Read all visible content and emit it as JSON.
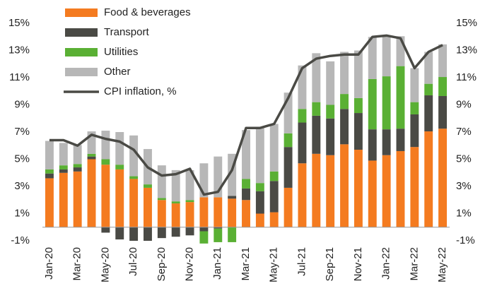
{
  "chart_data": {
    "type": "stacked-bar-line",
    "categories": [
      "Jan-20",
      null,
      "Mar-20",
      null,
      "May-20",
      null,
      "Jul-20",
      null,
      "Sep-20",
      null,
      "Nov-20",
      null,
      "Jan-21",
      null,
      "Mar-21",
      null,
      "May-21",
      null,
      "Jul-21",
      null,
      "Sep-21",
      null,
      "Nov-21",
      null,
      "Jan-22",
      null,
      "Mar-22",
      null,
      "May-22"
    ],
    "series": [
      {
        "name": "Food & beverages",
        "color": "#f47b20",
        "values": [
          3.6,
          4.0,
          4.1,
          5.0,
          4.6,
          4.25,
          3.55,
          2.9,
          2.0,
          1.75,
          1.85,
          2.2,
          2.2,
          2.1,
          2.0,
          1.0,
          1.1,
          2.9,
          4.7,
          5.4,
          5.3,
          6.1,
          5.7,
          4.9,
          5.3,
          5.6,
          5.9,
          7.05,
          7.25
        ]
      },
      {
        "name": "Transport",
        "color": "#4a4a45",
        "values": [
          0.35,
          0.25,
          0.3,
          0.2,
          -0.4,
          -0.9,
          -1.0,
          -1.0,
          -0.8,
          -0.7,
          -0.6,
          -0.3,
          -0.1,
          0.2,
          0.85,
          1.65,
          2.3,
          3.0,
          3.0,
          2.8,
          2.7,
          2.6,
          2.7,
          2.3,
          1.9,
          1.65,
          2.4,
          2.65,
          2.4
        ]
      },
      {
        "name": "Utilities",
        "color": "#5ab034",
        "values": [
          0.3,
          0.3,
          0.25,
          0.2,
          0.4,
          0.35,
          0.2,
          0.25,
          0.15,
          0.15,
          0.15,
          -0.9,
          -1.0,
          -1.1,
          0.7,
          0.6,
          0.7,
          1.0,
          1.0,
          1.0,
          1.0,
          1.1,
          1.1,
          3.7,
          3.9,
          4.6,
          0.9,
          0.85,
          1.4
        ]
      },
      {
        "name": "Other",
        "color": "#b7b7b7",
        "values": [
          2.1,
          1.65,
          1.4,
          1.65,
          2.1,
          2.4,
          3.0,
          2.6,
          2.4,
          2.3,
          2.2,
          2.5,
          3.0,
          3.1,
          3.6,
          4.1,
          3.5,
          3.0,
          3.2,
          3.6,
          3.2,
          3.1,
          3.5,
          3.1,
          3.0,
          2.2,
          2.5,
          2.35,
          2.4
        ]
      },
      {
        "name": "CPI inflation, %",
        "color": "#4a4a45",
        "type": "line",
        "values": [
          6.4,
          6.4,
          6.0,
          6.8,
          6.5,
          6.3,
          5.7,
          4.4,
          3.8,
          3.9,
          4.3,
          2.4,
          2.6,
          4.2,
          7.3,
          7.3,
          7.6,
          9.5,
          11.7,
          12.4,
          12.6,
          12.7,
          12.7,
          14.0,
          14.1,
          13.9,
          11.7,
          12.9,
          13.4
        ]
      }
    ],
    "ylim": [
      -1,
      15
    ],
    "yticks": [
      {
        "value": -1,
        "label": "-1%"
      },
      {
        "value": 1,
        "label": "1%"
      },
      {
        "value": 3,
        "label": "3%"
      },
      {
        "value": 5,
        "label": "5%"
      },
      {
        "value": 7,
        "label": "7%"
      },
      {
        "value": 9,
        "label": "9%"
      },
      {
        "value": 11,
        "label": "11%"
      },
      {
        "value": 13,
        "label": "13%"
      },
      {
        "value": 15,
        "label": "15%"
      }
    ],
    "y2lim": [
      -1,
      15
    ],
    "y2ticks": [
      {
        "value": -1,
        "label": "-1%"
      },
      {
        "value": 1,
        "label": "1%"
      },
      {
        "value": 3,
        "label": "3%"
      },
      {
        "value": 5,
        "label": "5%"
      },
      {
        "value": 7,
        "label": "7%"
      },
      {
        "value": 9,
        "label": "9%"
      },
      {
        "value": 11,
        "label": "11%"
      },
      {
        "value": 13,
        "label": "13%"
      },
      {
        "value": 15,
        "label": "15%"
      }
    ],
    "legend": "top-left"
  }
}
